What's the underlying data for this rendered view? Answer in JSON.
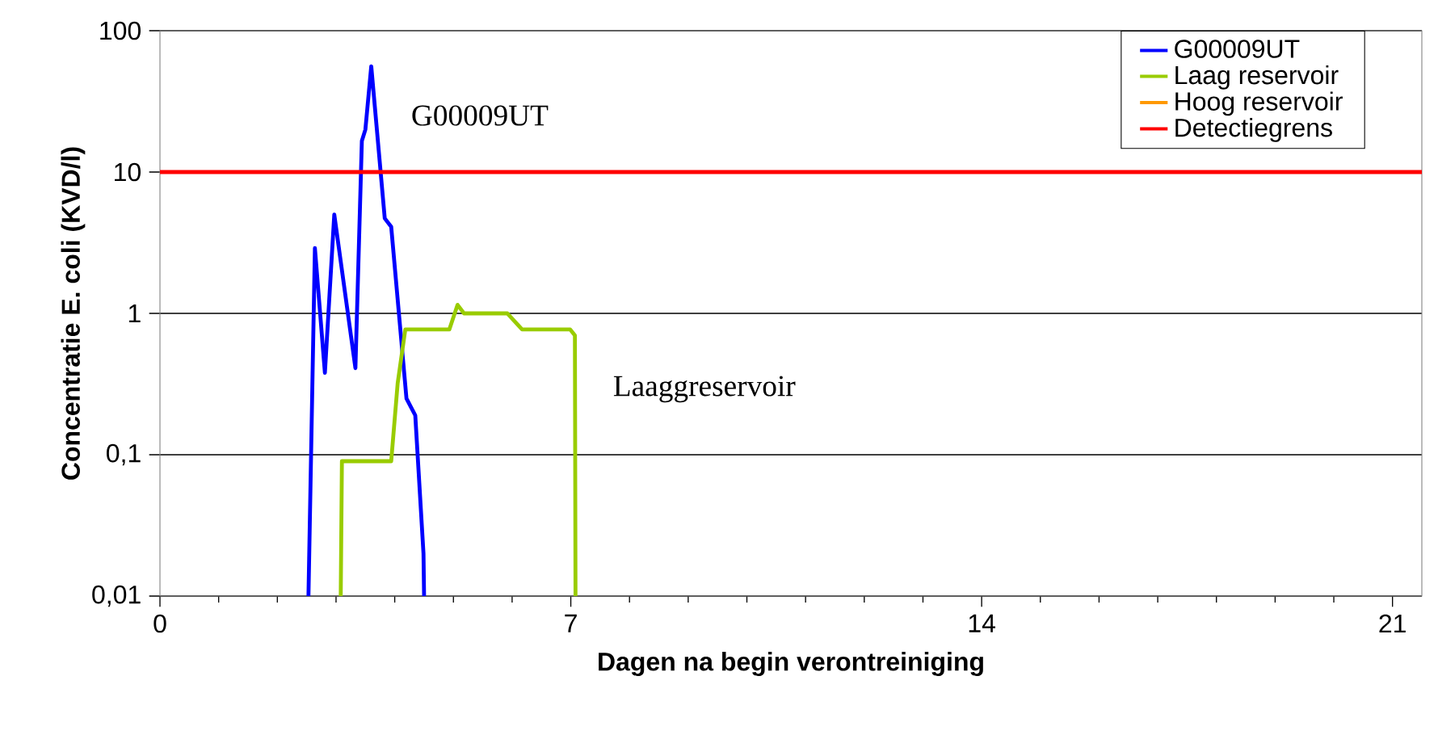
{
  "chart_data": {
    "type": "line",
    "xlabel": "Dagen na begin verontreiniging",
    "ylabel": "Concentratie E. coli (KVD/l)",
    "series": [
      {
        "name": "G00009UT",
        "color": "#0000ff",
        "x": [
          2.53,
          2.64,
          2.81,
          2.97,
          3.33,
          3.44,
          3.5,
          3.6,
          3.83,
          3.94,
          4.2,
          4.35,
          4.49,
          4.5
        ],
        "values": [
          0.01,
          2.9,
          0.38,
          5.0,
          0.41,
          16.6,
          20,
          56,
          4.7,
          4.1,
          0.25,
          0.19,
          0.02,
          0.01
        ]
      },
      {
        "name": "Laag reservoir",
        "color": "#99cc00",
        "x": [
          3.08,
          3.1,
          3.94,
          4.05,
          4.18,
          4.93,
          5.07,
          5.18,
          5.92,
          6.17,
          6.99,
          7.07,
          7.08
        ],
        "values": [
          0.01,
          0.09,
          0.09,
          0.32,
          0.77,
          0.77,
          1.15,
          1.0,
          1.0,
          0.77,
          0.77,
          0.7,
          0.01
        ]
      },
      {
        "name": "Hoog reservoir",
        "color": "#ff9900"
      }
    ],
    "ref_lines": [
      {
        "axis": "y",
        "value": 10,
        "label": "Detectiegrens",
        "color": "#ff0000"
      }
    ],
    "annotations": [
      "G00009UT",
      "Laaggreservoir"
    ],
    "xlim": [
      0,
      21.5
    ],
    "xticks": [
      0,
      7,
      14,
      21
    ],
    "ylim": [
      0.01,
      100
    ],
    "yticks": [
      {
        "value": 0.01,
        "label": "0,01"
      },
      {
        "value": 0.1,
        "label": "0,1"
      },
      {
        "value": 1,
        "label": "1"
      },
      {
        "value": 10,
        "label": "10"
      },
      {
        "value": 100,
        "label": "100"
      }
    ],
    "log": "y",
    "grid": "y",
    "legend": "top right",
    "line_style": "solid",
    "marker": "none"
  }
}
